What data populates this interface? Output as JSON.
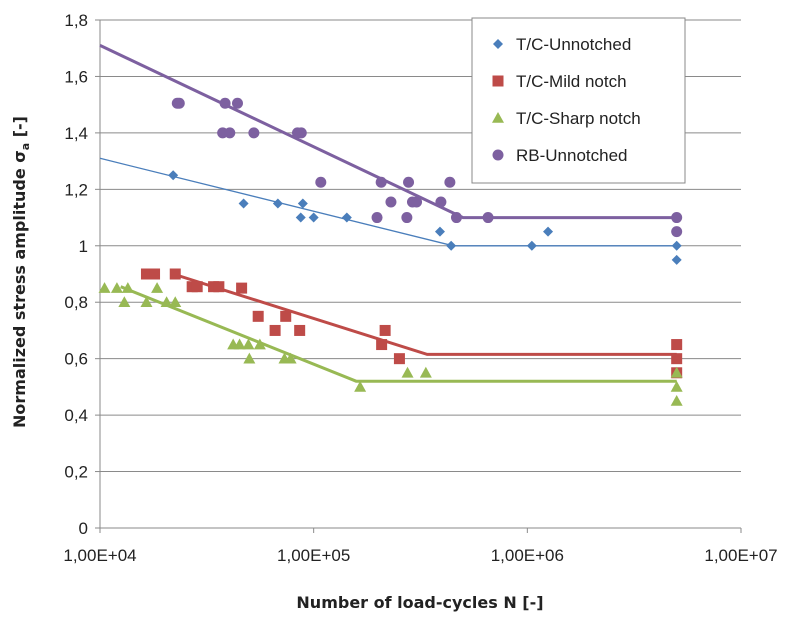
{
  "chart_data": {
    "type": "scatter",
    "title": "",
    "xlabel": "Number of load-cycles N [-]",
    "ylabel_main": "Normalized stress amplitude σ",
    "ylabel_sub": "a",
    "ylabel_tail": " [-]",
    "x_scale": "log",
    "xlim": [
      10000,
      10000000
    ],
    "ylim": [
      0,
      1.8
    ],
    "x_ticks": [
      {
        "value": 10000,
        "label": "1,00E+04"
      },
      {
        "value": 100000,
        "label": "1,00E+05"
      },
      {
        "value": 1000000,
        "label": "1,00E+06"
      },
      {
        "value": 10000000,
        "label": "1,00E+07"
      }
    ],
    "y_ticks": [
      {
        "value": 0,
        "label": "0"
      },
      {
        "value": 0.2,
        "label": "0,2"
      },
      {
        "value": 0.4,
        "label": "0,4"
      },
      {
        "value": 0.6,
        "label": "0,6"
      },
      {
        "value": 0.8,
        "label": "0,8"
      },
      {
        "value": 1.0,
        "label": "1"
      },
      {
        "value": 1.2,
        "label": "1,2"
      },
      {
        "value": 1.4,
        "label": "1,4"
      },
      {
        "value": 1.6,
        "label": "1,6"
      },
      {
        "value": 1.8,
        "label": "1,8"
      }
    ],
    "grid": "horizontal",
    "legend_position": "top-right",
    "series": [
      {
        "name": "T/C-Unnotched",
        "color": "#4a7ebb",
        "marker": "diamond",
        "points": [
          [
            22000,
            1.25
          ],
          [
            47000,
            1.15
          ],
          [
            68000,
            1.15
          ],
          [
            87000,
            1.1
          ],
          [
            89000,
            1.15
          ],
          [
            100000,
            1.1
          ],
          [
            143000,
            1.1
          ],
          [
            390000,
            1.05
          ],
          [
            440000,
            1.0
          ],
          [
            1050000,
            1.0
          ],
          [
            1250000,
            1.05
          ],
          [
            5000000,
            1.0
          ],
          [
            5000000,
            0.95
          ]
        ],
        "fit": [
          [
            10000,
            1.31
          ],
          [
            450000,
            1.0
          ],
          [
            5000000,
            1.0
          ]
        ]
      },
      {
        "name": "T/C-Mild notch",
        "color": "#be4b48",
        "marker": "square",
        "points": [
          [
            16500,
            0.9
          ],
          [
            18000,
            0.9
          ],
          [
            22500,
            0.9
          ],
          [
            27000,
            0.855
          ],
          [
            28500,
            0.855
          ],
          [
            34000,
            0.855
          ],
          [
            36000,
            0.855
          ],
          [
            46000,
            0.85
          ],
          [
            55000,
            0.75
          ],
          [
            66000,
            0.7
          ],
          [
            74000,
            0.75
          ],
          [
            86000,
            0.7
          ],
          [
            208000,
            0.65
          ],
          [
            216000,
            0.7
          ],
          [
            252000,
            0.6
          ],
          [
            5000000,
            0.65
          ],
          [
            5000000,
            0.6
          ],
          [
            5000000,
            0.55
          ]
        ],
        "fit": [
          [
            22000,
            0.9
          ],
          [
            340000,
            0.615
          ],
          [
            5000000,
            0.615
          ]
        ]
      },
      {
        "name": "T/C-Sharp notch",
        "color": "#98b954",
        "marker": "triangle",
        "points": [
          [
            10500,
            0.85
          ],
          [
            12000,
            0.85
          ],
          [
            13000,
            0.8
          ],
          [
            13500,
            0.85
          ],
          [
            16500,
            0.8
          ],
          [
            18500,
            0.85
          ],
          [
            20500,
            0.8
          ],
          [
            22500,
            0.8
          ],
          [
            42000,
            0.65
          ],
          [
            45000,
            0.65
          ],
          [
            49500,
            0.65
          ],
          [
            50000,
            0.6
          ],
          [
            56000,
            0.65
          ],
          [
            73000,
            0.6
          ],
          [
            78000,
            0.6
          ],
          [
            165000,
            0.5
          ],
          [
            275000,
            0.55
          ],
          [
            335000,
            0.55
          ],
          [
            5000000,
            0.55
          ],
          [
            5000000,
            0.5
          ],
          [
            5000000,
            0.45
          ]
        ],
        "fit": [
          [
            12500,
            0.855
          ],
          [
            158000,
            0.52
          ],
          [
            5000000,
            0.52
          ]
        ]
      },
      {
        "name": "RB-Unnotched",
        "color": "#7d60a0",
        "marker": "circle",
        "points": [
          [
            23000,
            1.505
          ],
          [
            23500,
            1.505
          ],
          [
            37500,
            1.4
          ],
          [
            38500,
            1.505
          ],
          [
            40500,
            1.4
          ],
          [
            44000,
            1.505
          ],
          [
            52500,
            1.4
          ],
          [
            84000,
            1.4
          ],
          [
            87500,
            1.4
          ],
          [
            108000,
            1.225
          ],
          [
            198000,
            1.1
          ],
          [
            207000,
            1.225
          ],
          [
            230000,
            1.155
          ],
          [
            273000,
            1.1
          ],
          [
            278000,
            1.225
          ],
          [
            290000,
            1.155
          ],
          [
            303000,
            1.155
          ],
          [
            394000,
            1.155
          ],
          [
            434000,
            1.225
          ],
          [
            466000,
            1.1
          ],
          [
            655000,
            1.1
          ],
          [
            5000000,
            1.1
          ],
          [
            5000000,
            1.05
          ]
        ],
        "fit": [
          [
            10000,
            1.71
          ],
          [
            500000,
            1.1
          ],
          [
            5000000,
            1.1
          ]
        ]
      }
    ]
  }
}
